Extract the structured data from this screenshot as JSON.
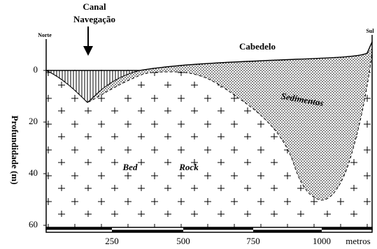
{
  "labels": {
    "canal": "Canal",
    "navegacao": "Navegação",
    "norte": "Norte",
    "sul": "Sul",
    "cabedelo": "Cabedelo",
    "sedimentos": "Sedimentos",
    "bed": "Bed",
    "rock": "Rock"
  },
  "y_axis": {
    "title": "Profundidade (m)",
    "ticks": [
      "0",
      "20",
      "40",
      "60"
    ]
  },
  "x_axis": {
    "unit": "metros",
    "ticks": [
      "250",
      "500",
      "750",
      "1000"
    ]
  }
}
